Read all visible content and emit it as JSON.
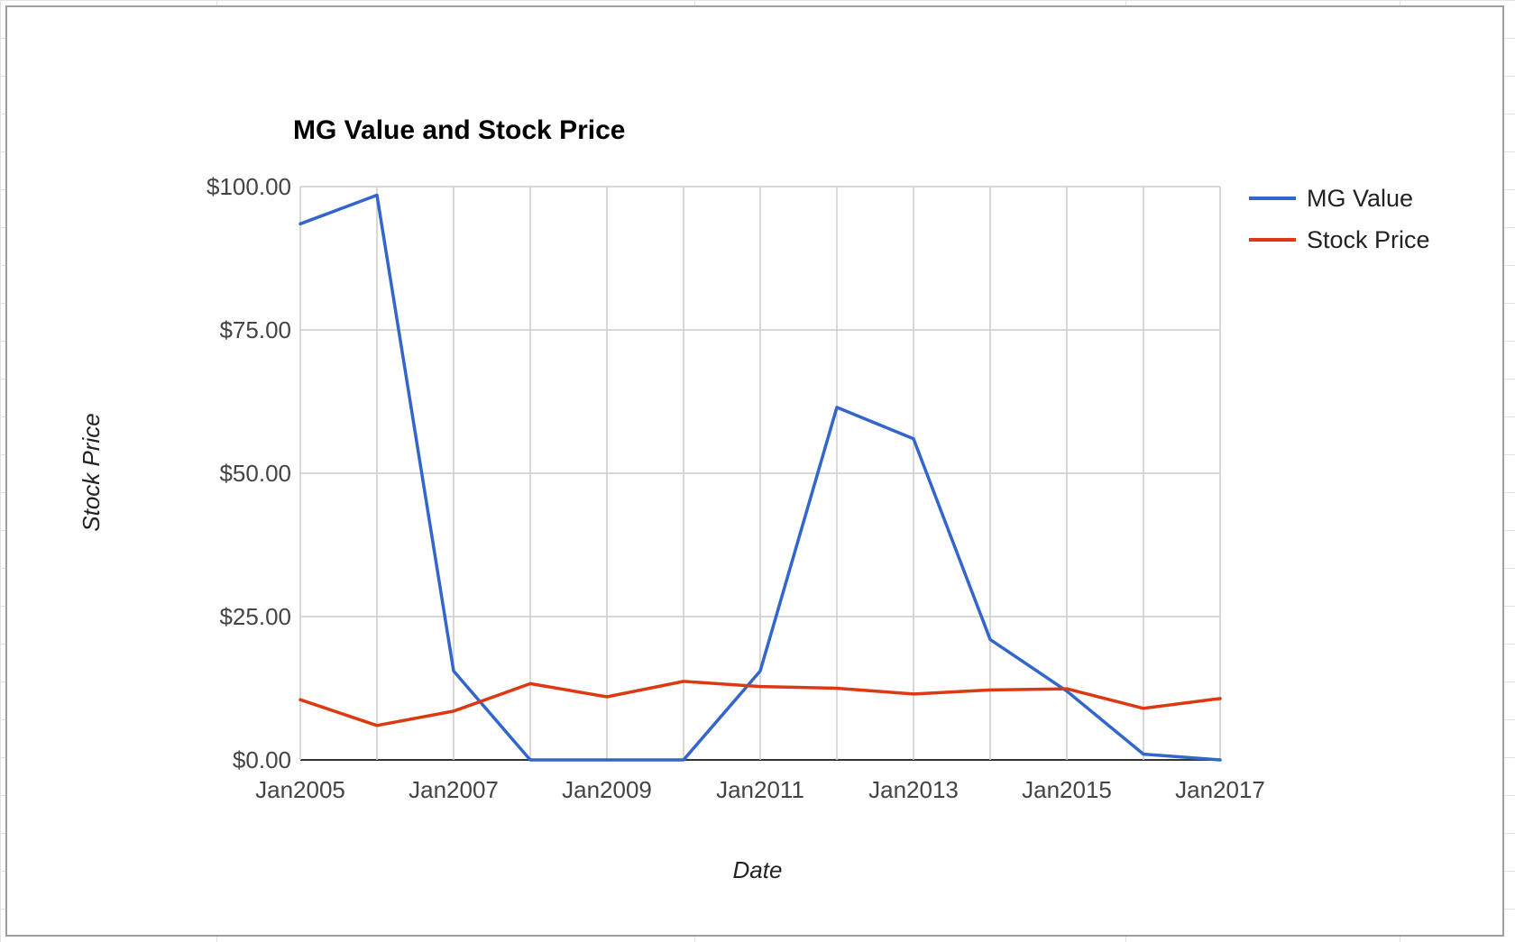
{
  "chart_data": {
    "type": "line",
    "title": "MG Value and Stock Price",
    "xlabel": "Date",
    "ylabel": "Stock Price",
    "x_tick_labels": [
      "Jan2005",
      "Jan2007",
      "Jan2009",
      "Jan2011",
      "Jan2013",
      "Jan2015",
      "Jan2017"
    ],
    "y_tick_labels": [
      "$0.00",
      "$25.00",
      "$50.00",
      "$75.00",
      "$100.00"
    ],
    "y_ticks": [
      0,
      25,
      50,
      75,
      100
    ],
    "xlim": [
      "2005-01",
      "2017-01"
    ],
    "ylim": [
      0,
      100
    ],
    "grid": true,
    "legend_position": "right",
    "x": [
      "2005-01",
      "2006-01",
      "2007-01",
      "2008-01",
      "2009-01",
      "2010-01",
      "2011-01",
      "2012-01",
      "2013-01",
      "2014-01",
      "2015-01",
      "2016-01",
      "2017-01"
    ],
    "series": [
      {
        "name": "MG Value",
        "color": "#3366cc",
        "values": [
          93.5,
          98.5,
          15.5,
          0,
          0,
          0,
          15.5,
          61.5,
          56,
          21,
          12,
          1,
          0
        ]
      },
      {
        "name": "Stock Price",
        "color": "#dc3912",
        "values": [
          10.5,
          6,
          8.5,
          13.3,
          11,
          13.7,
          12.8,
          12.5,
          11.5,
          12.2,
          12.4,
          9,
          10.7
        ]
      }
    ]
  }
}
